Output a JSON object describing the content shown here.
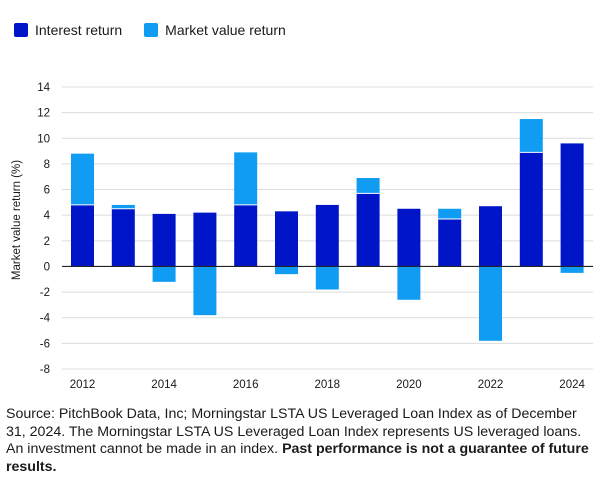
{
  "legend": {
    "interest_label": "Interest return",
    "market_label": "Market value return"
  },
  "colors": {
    "interest": "#0014c8",
    "market": "#109cf2",
    "grid": "#dcdcdc",
    "zero": "#222222"
  },
  "chart_data": {
    "type": "bar",
    "stacked": true,
    "ylabel": "Market value return (%)",
    "xlabel": "",
    "ylim": [
      -8,
      14
    ],
    "yticks": [
      -8,
      -6,
      -4,
      -2,
      0,
      2,
      4,
      6,
      8,
      10,
      12,
      14
    ],
    "grid": true,
    "legend_position": "top-left",
    "categories": [
      "2012",
      "2013",
      "2014",
      "2015",
      "2016",
      "2017",
      "2018",
      "2019",
      "2020",
      "2021",
      "2022",
      "2023",
      "2024"
    ],
    "xtick_labels": [
      "2012",
      "",
      "2014",
      "",
      "2016",
      "",
      "2018",
      "",
      "2020",
      "",
      "2022",
      "",
      "2024"
    ],
    "series": [
      {
        "name": "Interest return",
        "values": [
          4.8,
          4.5,
          4.1,
          4.2,
          4.8,
          4.3,
          4.8,
          5.7,
          4.5,
          3.7,
          4.7,
          8.9,
          9.6
        ]
      },
      {
        "name": "Market value return",
        "values": [
          4.0,
          0.3,
          -1.2,
          -3.8,
          4.1,
          -0.6,
          -1.8,
          1.2,
          -2.6,
          0.8,
          -5.8,
          2.6,
          -0.5
        ]
      }
    ]
  },
  "source": {
    "text": "Source: PitchBook Data, Inc; Morningstar LSTA US Leveraged Loan Index as of December 31, 2024. The Morningstar LSTA US Leveraged Loan Index represents US leveraged loans. An investment cannot be made in an index.",
    "bold_text": "Past performance is not a guarantee of future results."
  }
}
